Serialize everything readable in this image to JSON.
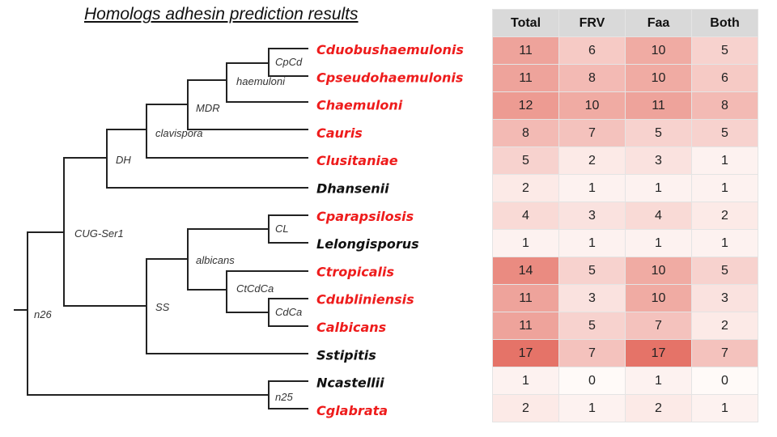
{
  "title": "Homologs adhesin prediction results",
  "colors": {
    "red_species": "#ee1c1c",
    "black_species": "#111111",
    "branch": "#222222",
    "heat_low": "#fffaf8",
    "heat_high": "#e57368"
  },
  "tree": {
    "leaves": [
      {
        "name": "Cduobushaemulonis",
        "color": "red"
      },
      {
        "name": "Cpseudohaemulonis",
        "color": "red"
      },
      {
        "name": "Chaemuloni",
        "color": "red"
      },
      {
        "name": "Cauris",
        "color": "red"
      },
      {
        "name": "Clusitaniae",
        "color": "red"
      },
      {
        "name": "Dhansenii",
        "color": "black"
      },
      {
        "name": "Cparapsilosis",
        "color": "red"
      },
      {
        "name": "Lelongisporus",
        "color": "black"
      },
      {
        "name": "Ctropicalis",
        "color": "red"
      },
      {
        "name": "Cdubliniensis",
        "color": "red"
      },
      {
        "name": "Calbicans",
        "color": "red"
      },
      {
        "name": "Sstipitis",
        "color": "black"
      },
      {
        "name": "Ncastellii",
        "color": "black"
      },
      {
        "name": "Cglabrata",
        "color": "red"
      }
    ],
    "node_labels": {
      "CpCd": "CpCd",
      "haemuloni": "haemuloni",
      "MDR": "MDR",
      "clavispora": "clavispora",
      "DH": "DH",
      "CUG": "CUG-Ser1",
      "CL": "CL",
      "albicans": "albicans",
      "CtCdCa": "CtCdCa",
      "CdCa": "CdCa",
      "SS": "SS",
      "n26": "n26",
      "n25": "n25"
    }
  },
  "table": {
    "headers": [
      "Total",
      "FRV",
      "Faa",
      "Both"
    ],
    "rows": [
      [
        11,
        6,
        10,
        5
      ],
      [
        11,
        8,
        10,
        6
      ],
      [
        12,
        10,
        11,
        8
      ],
      [
        8,
        7,
        5,
        5
      ],
      [
        5,
        2,
        3,
        1
      ],
      [
        2,
        1,
        1,
        1
      ],
      [
        4,
        3,
        4,
        2
      ],
      [
        1,
        1,
        1,
        1
      ],
      [
        14,
        5,
        10,
        5
      ],
      [
        11,
        3,
        10,
        3
      ],
      [
        11,
        5,
        7,
        2
      ],
      [
        17,
        7,
        17,
        7
      ],
      [
        1,
        0,
        1,
        0
      ],
      [
        2,
        1,
        2,
        1
      ]
    ]
  }
}
